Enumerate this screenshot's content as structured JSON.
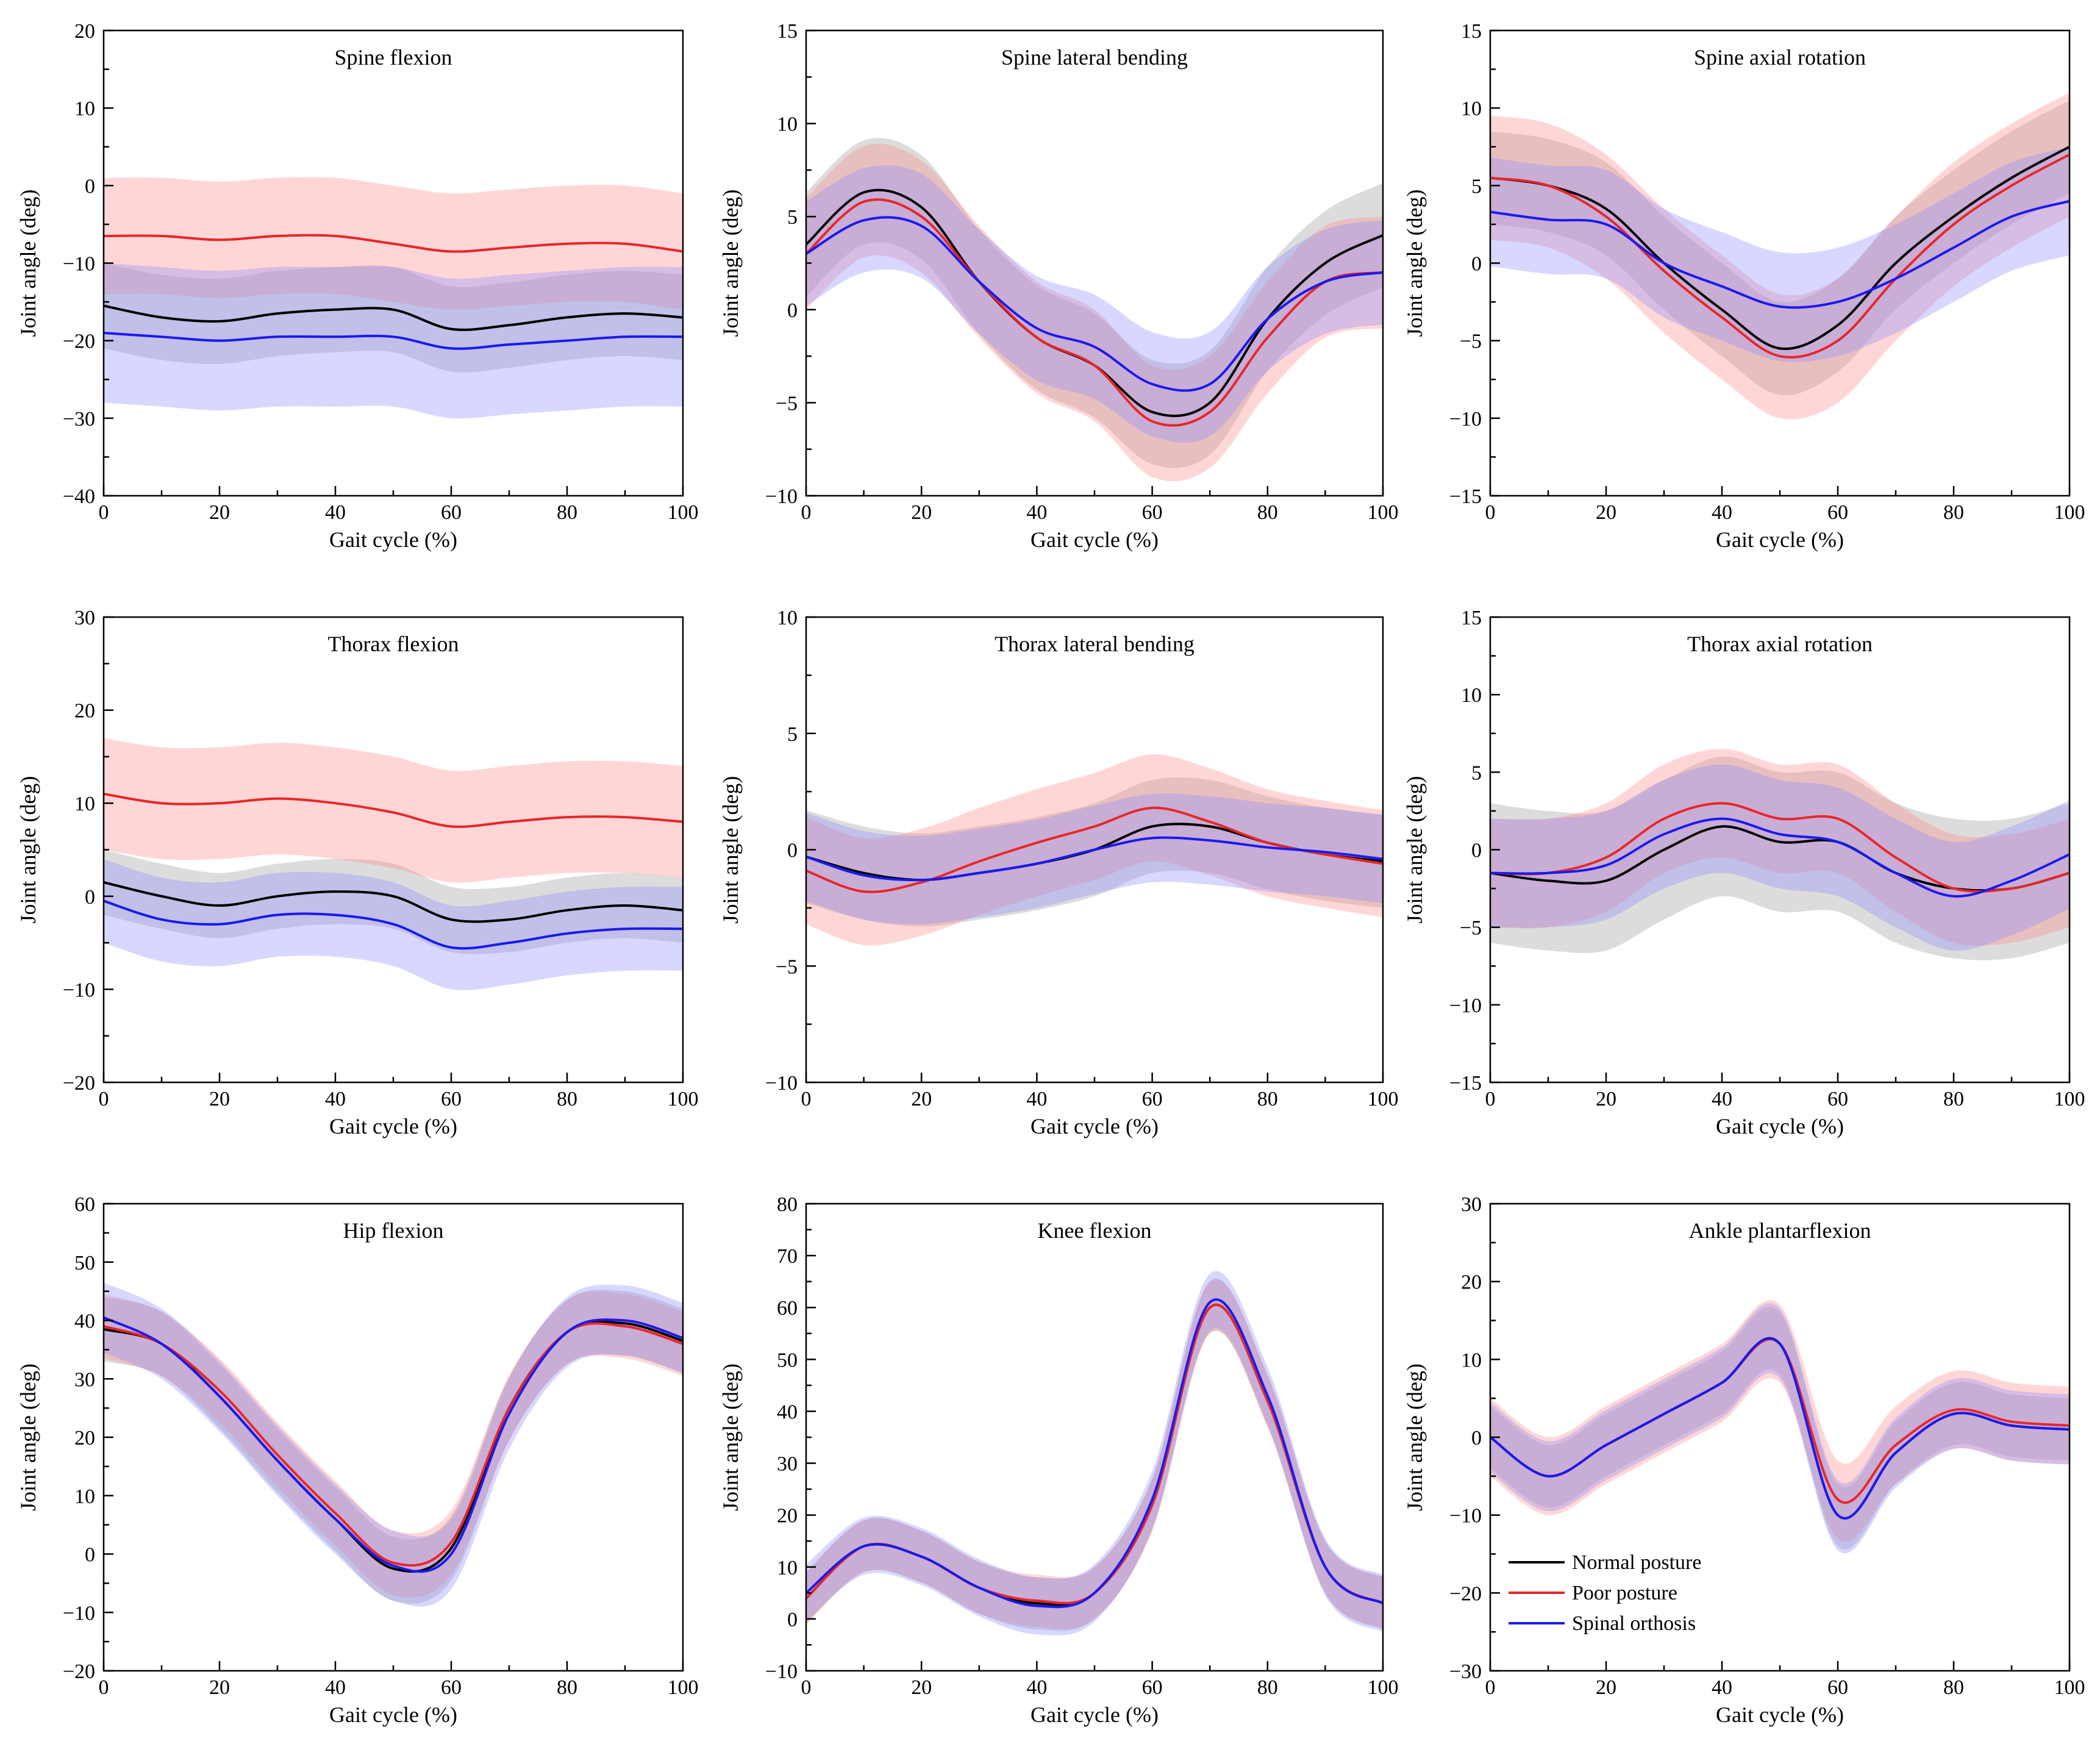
{
  "chart_data": {
    "type": "line",
    "description_legend": [
      {
        "name": "Normal posture",
        "color": "#000000",
        "band_color": "#9a9a9a"
      },
      {
        "name": "Poor posture",
        "color": "#e8262a",
        "band_color": "#ff8a8a"
      },
      {
        "name": "Spinal orthosis",
        "color": "#1a1aee",
        "band_color": "#8c8cff"
      }
    ],
    "shared_x": [
      0,
      10,
      20,
      30,
      40,
      50,
      60,
      70,
      80,
      90,
      100
    ],
    "xlabel": "Gait cycle (%)",
    "ylabel": "Joint angle (deg)",
    "xlim": [
      0,
      100
    ],
    "xticks": [
      0,
      20,
      40,
      60,
      80,
      100
    ],
    "panels": [
      {
        "title": "Spine flexion",
        "ylim": [
          -40,
          20
        ],
        "yticks": [
          -40,
          -30,
          -20,
          -10,
          0,
          10,
          20
        ],
        "series": [
          {
            "name": "Normal posture",
            "values": [
              -15.5,
              -17,
              -17.5,
              -16.5,
              -16,
              -16,
              -18.5,
              -18,
              -17,
              -16.5,
              -17
            ],
            "sd": [
              5.5,
              5.5,
              5.5,
              5.5,
              5.5,
              5.5,
              5.5,
              5.5,
              5.5,
              5.5,
              5.5
            ]
          },
          {
            "name": "Poor posture",
            "values": [
              -6.5,
              -6.5,
              -7,
              -6.5,
              -6.5,
              -7.5,
              -8.5,
              -8,
              -7.5,
              -7.5,
              -8.5
            ],
            "sd": [
              7.5,
              7.5,
              7.5,
              7.5,
              7.5,
              7.5,
              7.5,
              7.5,
              7.5,
              7.5,
              7.5
            ]
          },
          {
            "name": "Spinal orthosis",
            "values": [
              -19,
              -19.5,
              -20,
              -19.5,
              -19.5,
              -19.5,
              -21,
              -20.5,
              -20,
              -19.5,
              -19.5
            ],
            "sd": [
              9,
              9,
              9,
              9,
              9,
              9,
              9,
              9,
              9,
              9,
              9
            ]
          }
        ]
      },
      {
        "title": "Spine lateral bending",
        "ylim": [
          -10,
          15
        ],
        "yticks": [
          -10,
          -5,
          0,
          5,
          10,
          15
        ],
        "series": [
          {
            "name": "Normal posture",
            "values": [
              3.5,
              6.3,
              5.5,
              1.5,
              -1.5,
              -3,
              -5.5,
              -5,
              -0.5,
              2.5,
              4
            ],
            "sd": [
              2.8,
              2.8,
              2.8,
              2.8,
              2.8,
              2.8,
              2.8,
              2.8,
              2.8,
              2.8,
              2.8
            ]
          },
          {
            "name": "Poor posture",
            "values": [
              3,
              5.8,
              5,
              1.5,
              -1.5,
              -3,
              -6,
              -5.5,
              -1.5,
              1.5,
              2
            ],
            "sd": [
              3,
              3,
              3,
              3,
              3,
              3,
              3,
              3,
              3,
              3,
              3
            ]
          },
          {
            "name": "Spinal orthosis",
            "values": [
              3,
              4.8,
              4.5,
              1.5,
              -1,
              -2,
              -4,
              -4,
              -0.5,
              1.5,
              2
            ],
            "sd": [
              2.8,
              2.8,
              2.8,
              2.8,
              2.8,
              2.8,
              2.8,
              2.8,
              2.8,
              2.8,
              2.8
            ]
          }
        ]
      },
      {
        "title": "Spine axial rotation",
        "ylim": [
          -15,
          15
        ],
        "yticks": [
          -15,
          -10,
          -5,
          0,
          5,
          10,
          15
        ],
        "series": [
          {
            "name": "Normal posture",
            "values": [
              5.5,
              5,
              3.5,
              0,
              -3,
              -5.5,
              -4,
              0,
              3,
              5.5,
              7.5
            ],
            "sd": [
              3,
              3,
              3,
              3,
              3,
              3,
              3,
              3,
              3,
              3,
              3
            ]
          },
          {
            "name": "Poor posture",
            "values": [
              5.5,
              5,
              3,
              -0.5,
              -3.5,
              -6,
              -5,
              -1,
              2.5,
              5,
              7
            ],
            "sd": [
              4,
              4,
              4,
              4,
              4,
              4,
              4,
              4,
              4,
              4,
              4
            ]
          },
          {
            "name": "Spinal orthosis",
            "values": [
              3.3,
              2.8,
              2.5,
              0,
              -1.5,
              -2.8,
              -2.5,
              -1,
              1,
              3,
              4
            ],
            "sd": [
              3.5,
              3.5,
              3.5,
              3.5,
              3.5,
              3.5,
              3.5,
              3.5,
              3.5,
              3.5,
              3.5
            ]
          }
        ]
      },
      {
        "title": "Thorax flexion",
        "ylim": [
          -20,
          30
        ],
        "yticks": [
          -20,
          -10,
          0,
          10,
          20,
          30
        ],
        "series": [
          {
            "name": "Normal posture",
            "values": [
              1.5,
              0,
              -1,
              0,
              0.5,
              0,
              -2.5,
              -2.5,
              -1.5,
              -1,
              -1.5
            ],
            "sd": [
              3.5,
              3.5,
              3.5,
              3.5,
              3.5,
              3.5,
              3.5,
              3.5,
              3.5,
              3.5,
              3.5
            ]
          },
          {
            "name": "Poor posture",
            "values": [
              11,
              10,
              10,
              10.5,
              10,
              9,
              7.5,
              8,
              8.5,
              8.5,
              8
            ],
            "sd": [
              6,
              6,
              6,
              6,
              6,
              6,
              6,
              6,
              6,
              6,
              6
            ]
          },
          {
            "name": "Spinal orthosis",
            "values": [
              -0.5,
              -2.5,
              -3,
              -2,
              -2,
              -3,
              -5.5,
              -5,
              -4,
              -3.5,
              -3.5
            ],
            "sd": [
              4.5,
              4.5,
              4.5,
              4.5,
              4.5,
              4.5,
              4.5,
              4.5,
              4.5,
              4.5,
              4.5
            ]
          }
        ]
      },
      {
        "title": "Thorax lateral bending",
        "ylim": [
          -10,
          10
        ],
        "yticks": [
          -10,
          -5,
          0,
          5,
          10
        ],
        "series": [
          {
            "name": "Normal posture",
            "values": [
              -0.3,
              -1,
              -1.3,
              -1,
              -0.6,
              0,
              1,
              1,
              0.3,
              -0.2,
              -0.5
            ],
            "sd": [
              2,
              2,
              2,
              2,
              2,
              2,
              2,
              2,
              2,
              2,
              2
            ]
          },
          {
            "name": "Poor posture",
            "values": [
              -0.9,
              -1.8,
              -1.4,
              -0.5,
              0.3,
              1,
              1.8,
              1.2,
              0.3,
              -0.2,
              -0.6
            ],
            "sd": [
              2.3,
              2.3,
              2.3,
              2.3,
              2.3,
              2.3,
              2.3,
              2.3,
              2.3,
              2.3,
              2.3
            ]
          },
          {
            "name": "Spinal orthosis",
            "values": [
              -0.3,
              -1.1,
              -1.3,
              -1,
              -0.6,
              0,
              0.5,
              0.4,
              0.1,
              -0.1,
              -0.4
            ],
            "sd": [
              1.9,
              1.9,
              1.9,
              1.9,
              1.9,
              1.9,
              1.9,
              1.9,
              1.9,
              1.9,
              1.9
            ]
          }
        ]
      },
      {
        "title": "Thorax axial rotation",
        "ylim": [
          -15,
          15
        ],
        "yticks": [
          -15,
          -10,
          -5,
          0,
          5,
          10,
          15
        ],
        "series": [
          {
            "name": "Normal posture",
            "values": [
              -1.5,
              -2,
              -2,
              0,
              1.5,
              0.5,
              0.5,
              -1.5,
              -2.5,
              -2.5,
              -1.5
            ],
            "sd": [
              4.5,
              4.5,
              4.5,
              4.5,
              4.5,
              4.5,
              4.5,
              4.5,
              4.5,
              4.5,
              4.5
            ]
          },
          {
            "name": "Poor posture",
            "values": [
              -1.5,
              -1.5,
              -0.5,
              2,
              3,
              2,
              2,
              -0.5,
              -2.5,
              -2.5,
              -1.5
            ],
            "sd": [
              3.5,
              3.5,
              3.5,
              3.5,
              3.5,
              3.5,
              3.5,
              3.5,
              3.5,
              3.5,
              3.5
            ]
          },
          {
            "name": "Spinal orthosis",
            "values": [
              -1.5,
              -1.5,
              -1,
              1,
              2,
              1,
              0.5,
              -1.5,
              -3,
              -2,
              -0.3
            ],
            "sd": [
              3.5,
              3.5,
              3.5,
              3.5,
              3.5,
              3.5,
              3.5,
              3.5,
              3.5,
              3.5,
              3.5
            ]
          }
        ]
      },
      {
        "title": "Hip flexion",
        "ylim": [
          -20,
          60
        ],
        "yticks": [
          -20,
          -10,
          0,
          10,
          20,
          30,
          40,
          50,
          60
        ],
        "series": [
          {
            "name": "Normal posture",
            "values": [
              38.5,
              36,
              27,
              16,
              6,
              -2.5,
              1,
              25,
              38,
              39.5,
              36.5
            ],
            "sd": [
              5.5,
              5.5,
              5.5,
              5.5,
              5.5,
              5.5,
              5.5,
              5.5,
              5.5,
              5.5,
              5.5
            ]
          },
          {
            "name": "Poor posture",
            "values": [
              39,
              36,
              28,
              17,
              7,
              -1.5,
              2,
              25,
              38,
              39,
              36
            ],
            "sd": [
              5.5,
              5.5,
              5.5,
              5.5,
              5.5,
              5.5,
              5.5,
              5.5,
              5.5,
              5.5,
              5.5
            ]
          },
          {
            "name": "Spinal orthosis",
            "values": [
              40.5,
              36,
              27,
              16,
              6,
              -2,
              0,
              24,
              38,
              40,
              37
            ],
            "sd": [
              6,
              6,
              6,
              6,
              6,
              6,
              6,
              6,
              6,
              6,
              6
            ]
          }
        ]
      },
      {
        "title": "Knee flexion",
        "ylim": [
          -10,
          80
        ],
        "yticks": [
          -10,
          0,
          10,
          20,
          30,
          40,
          50,
          60,
          70,
          80
        ],
        "series": [
          {
            "name": "Normal posture",
            "values": [
              4,
              14,
              12,
              6,
              3,
              5,
              22,
              60,
              42,
              10,
              3
            ],
            "sd": [
              5,
              5,
              5,
              5,
              5,
              5,
              5,
              5,
              5,
              5,
              5
            ]
          },
          {
            "name": "Poor posture",
            "values": [
              4,
              14,
              12,
              6,
              3.5,
              5,
              22,
              60,
              42,
              10,
              3
            ],
            "sd": [
              5,
              5,
              5,
              5,
              5,
              5,
              5,
              5,
              5,
              5,
              5
            ]
          },
          {
            "name": "Spinal orthosis",
            "values": [
              5,
              14,
              12,
              6,
              2.5,
              5,
              23,
              61,
              43,
              10,
              3
            ],
            "sd": [
              5.5,
              5.5,
              5.5,
              5.5,
              5.5,
              5.5,
              5.5,
              5.5,
              5.5,
              5.5,
              5.5
            ]
          }
        ]
      },
      {
        "title": "Ankle plantarflexion",
        "ylim": [
          -30,
          30
        ],
        "yticks": [
          -30,
          -20,
          -10,
          0,
          10,
          20,
          30
        ],
        "series": [
          {
            "name": "Normal posture",
            "values": [
              0,
              -5,
              -1,
              3,
              7,
              12,
              -10,
              -2,
              3,
              1.5,
              1
            ],
            "sd": [
              4,
              4,
              4,
              4,
              4,
              4,
              4,
              4,
              4,
              4,
              4
            ]
          },
          {
            "name": "Poor posture",
            "values": [
              0,
              -5,
              -1,
              3,
              7,
              12,
              -8,
              -1,
              3.5,
              2,
              1.5
            ],
            "sd": [
              5,
              5,
              5,
              5,
              5,
              5,
              5,
              5,
              5,
              5,
              5
            ]
          },
          {
            "name": "Spinal orthosis",
            "values": [
              0,
              -5,
              -1,
              3,
              7,
              12,
              -10,
              -2,
              3,
              1.5,
              1
            ],
            "sd": [
              4.5,
              4.5,
              4.5,
              4.5,
              4.5,
              4.5,
              4.5,
              4.5,
              4.5,
              4.5,
              4.5
            ]
          }
        ]
      }
    ]
  },
  "legend": {
    "items": [
      {
        "label": "Normal posture",
        "color": "#000000"
      },
      {
        "label": "Poor posture",
        "color": "#e8262a"
      },
      {
        "label": "Spinal orthosis",
        "color": "#1a1aee"
      }
    ]
  }
}
